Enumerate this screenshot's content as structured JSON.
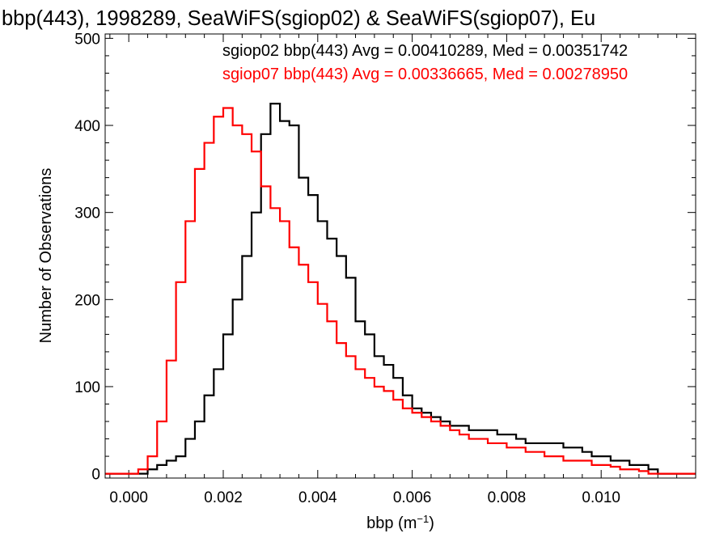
{
  "chart_data": {
    "type": "histogram",
    "title": "bbp(443), 1998289, SeaWiFS(sgiop02) & SeaWiFS(sgiop07), Eu",
    "xlabel": "bbp (m",
    "xlabel_sup": "−1",
    "xlabel_close": ")",
    "ylabel": "Number of Observations",
    "xlim": [
      -0.0005,
      0.012
    ],
    "ylim": [
      -5,
      505
    ],
    "xticks": [
      0.0,
      0.002,
      0.004,
      0.006,
      0.008,
      0.01
    ],
    "xtick_labels": [
      "0.000",
      "0.002",
      "0.004",
      "0.006",
      "0.008",
      "0.010"
    ],
    "yticks": [
      0,
      100,
      200,
      300,
      400,
      500
    ],
    "ytick_labels": [
      "0",
      "100",
      "200",
      "300",
      "400",
      "500"
    ],
    "grid": false,
    "legend_position": "top-right",
    "series": [
      {
        "name": "sgiop02",
        "legend": "sgiop02 bbp(443) Avg = 0.00410289, Med = 0.00351742",
        "color": "#000000",
        "points": [
          [
            0.0004,
            5
          ],
          [
            0.0006,
            10
          ],
          [
            0.0008,
            15
          ],
          [
            0.001,
            20
          ],
          [
            0.0012,
            40
          ],
          [
            0.0014,
            60
          ],
          [
            0.0016,
            90
          ],
          [
            0.0018,
            120
          ],
          [
            0.002,
            160
          ],
          [
            0.0022,
            200
          ],
          [
            0.0024,
            250
          ],
          [
            0.0026,
            300
          ],
          [
            0.0028,
            390
          ],
          [
            0.003,
            425
          ],
          [
            0.0032,
            405
          ],
          [
            0.0034,
            400
          ],
          [
            0.0036,
            340
          ],
          [
            0.0038,
            320
          ],
          [
            0.004,
            290
          ],
          [
            0.0042,
            270
          ],
          [
            0.0044,
            250
          ],
          [
            0.0046,
            225
          ],
          [
            0.0048,
            175
          ],
          [
            0.005,
            160
          ],
          [
            0.0052,
            135
          ],
          [
            0.0054,
            125
          ],
          [
            0.0056,
            110
          ],
          [
            0.0058,
            90
          ],
          [
            0.006,
            75
          ],
          [
            0.0062,
            70
          ],
          [
            0.0064,
            65
          ],
          [
            0.0066,
            60
          ],
          [
            0.0068,
            55
          ],
          [
            0.007,
            55
          ],
          [
            0.0072,
            50
          ],
          [
            0.0074,
            50
          ],
          [
            0.0076,
            50
          ],
          [
            0.0078,
            45
          ],
          [
            0.008,
            45
          ],
          [
            0.0082,
            40
          ],
          [
            0.0084,
            35
          ],
          [
            0.0086,
            35
          ],
          [
            0.0088,
            35
          ],
          [
            0.009,
            35
          ],
          [
            0.0092,
            30
          ],
          [
            0.0094,
            30
          ],
          [
            0.0096,
            25
          ],
          [
            0.0098,
            20
          ],
          [
            0.01,
            20
          ],
          [
            0.0102,
            15
          ],
          [
            0.0104,
            15
          ],
          [
            0.0106,
            10
          ],
          [
            0.0108,
            10
          ],
          [
            0.011,
            5
          ],
          [
            0.0112,
            0
          ]
        ]
      },
      {
        "name": "sgiop07",
        "legend": "sgiop07 bbp(443) Avg = 0.00336665, Med = 0.00278950",
        "color": "#ff0000",
        "points": [
          [
            0.0,
            0
          ],
          [
            0.0002,
            5
          ],
          [
            0.0004,
            20
          ],
          [
            0.0006,
            60
          ],
          [
            0.0008,
            130
          ],
          [
            0.001,
            220
          ],
          [
            0.0012,
            290
          ],
          [
            0.0014,
            350
          ],
          [
            0.0016,
            380
          ],
          [
            0.0018,
            410
          ],
          [
            0.002,
            420
          ],
          [
            0.0022,
            400
          ],
          [
            0.0024,
            390
          ],
          [
            0.0026,
            370
          ],
          [
            0.0028,
            330
          ],
          [
            0.003,
            305
          ],
          [
            0.0032,
            290
          ],
          [
            0.0034,
            260
          ],
          [
            0.0036,
            240
          ],
          [
            0.0038,
            220
          ],
          [
            0.004,
            195
          ],
          [
            0.0042,
            175
          ],
          [
            0.0044,
            150
          ],
          [
            0.0046,
            135
          ],
          [
            0.0048,
            120
          ],
          [
            0.005,
            110
          ],
          [
            0.0052,
            100
          ],
          [
            0.0054,
            95
          ],
          [
            0.0056,
            85
          ],
          [
            0.0058,
            75
          ],
          [
            0.006,
            70
          ],
          [
            0.0062,
            65
          ],
          [
            0.0064,
            60
          ],
          [
            0.0066,
            55
          ],
          [
            0.0068,
            50
          ],
          [
            0.007,
            45
          ],
          [
            0.0072,
            40
          ],
          [
            0.0074,
            40
          ],
          [
            0.0076,
            35
          ],
          [
            0.0078,
            35
          ],
          [
            0.008,
            30
          ],
          [
            0.0082,
            30
          ],
          [
            0.0084,
            25
          ],
          [
            0.0086,
            25
          ],
          [
            0.0088,
            20
          ],
          [
            0.009,
            20
          ],
          [
            0.0092,
            15
          ],
          [
            0.0094,
            15
          ],
          [
            0.0096,
            15
          ],
          [
            0.0098,
            10
          ],
          [
            0.01,
            10
          ],
          [
            0.0102,
            8
          ],
          [
            0.0104,
            5
          ],
          [
            0.0106,
            5
          ],
          [
            0.0108,
            3
          ],
          [
            0.011,
            0
          ]
        ]
      }
    ]
  }
}
